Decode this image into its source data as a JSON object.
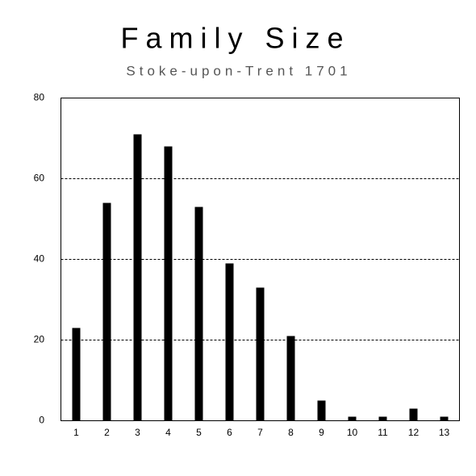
{
  "chart_data": {
    "type": "bar",
    "title": "Family Size",
    "subtitle": "Stoke-upon-Trent 1701",
    "categories": [
      "1",
      "2",
      "3",
      "4",
      "5",
      "6",
      "7",
      "8",
      "9",
      "10",
      "11",
      "12",
      "13"
    ],
    "values": [
      23,
      54,
      71,
      68,
      53,
      39,
      33,
      21,
      5,
      1,
      1,
      3,
      1
    ],
    "color": "#000000",
    "ylim": [
      0,
      80
    ],
    "yticks": [
      0,
      20,
      40,
      60,
      80
    ],
    "grid": true
  }
}
